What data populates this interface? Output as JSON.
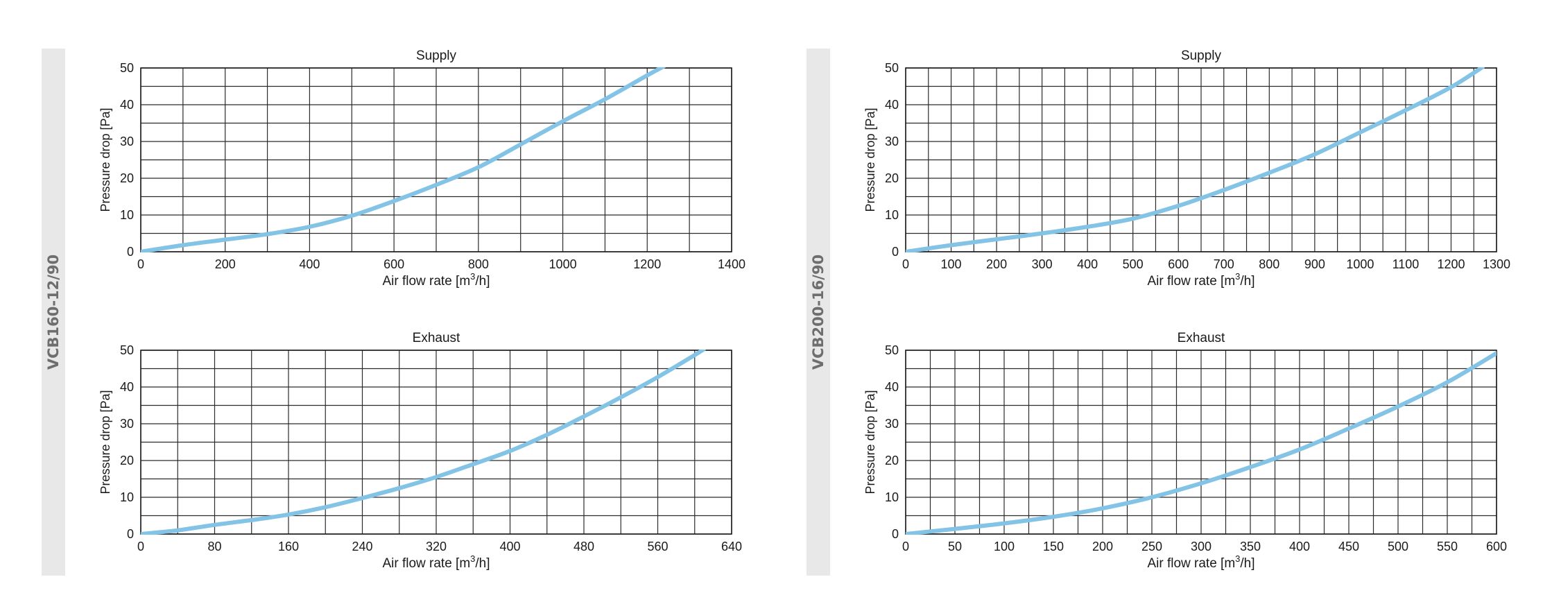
{
  "groups": [
    {
      "model": "VCB160-12/90"
    },
    {
      "model": "VCB200-16/90"
    }
  ],
  "chart_data": [
    {
      "type": "line",
      "group": "VCB160-12/90",
      "title": "Supply",
      "xlabel": "Air flow rate [m³/h]",
      "xlabel_parts": {
        "main": "Air flow rate [m",
        "sup": "3",
        "tail": "/h]"
      },
      "ylabel": "Pressure drop [Pa]",
      "xlim": [
        0,
        1400
      ],
      "ylim": [
        0,
        50
      ],
      "x_ticks": [
        0,
        200,
        400,
        600,
        800,
        1000,
        1200,
        1400
      ],
      "x_tick_labels": [
        "0",
        "200",
        "400",
        "600",
        "800",
        "1000",
        "1200",
        "1400"
      ],
      "x_minor_step": 100,
      "y_ticks": [
        0,
        10,
        20,
        30,
        40,
        50
      ],
      "y_tick_labels": [
        "0",
        "10",
        "20",
        "30",
        "40",
        "50"
      ],
      "y_minor_step": 5,
      "grid": true,
      "line_color": "#82c3e6",
      "x": [
        0,
        100,
        200,
        300,
        400,
        500,
        600,
        700,
        800,
        900,
        1000,
        1100,
        1200,
        1240
      ],
      "y": [
        0,
        1.8,
        3.3,
        4.8,
        6.8,
        9.8,
        13.8,
        18.2,
        23,
        29.2,
        35.5,
        41.5,
        48,
        50.5
      ]
    },
    {
      "type": "line",
      "group": "VCB160-12/90",
      "title": "Exhaust",
      "xlabel": "Air flow rate [m³/h]",
      "xlabel_parts": {
        "main": "Air flow rate [m",
        "sup": "3",
        "tail": "/h]"
      },
      "ylabel": "Pressure drop [Pa]",
      "xlim": [
        0,
        640
      ],
      "ylim": [
        0,
        50
      ],
      "x_ticks": [
        0,
        80,
        160,
        240,
        320,
        400,
        480,
        560,
        640
      ],
      "x_tick_labels": [
        "0",
        "80",
        "160",
        "240",
        "320",
        "400",
        "480",
        "560",
        "640"
      ],
      "x_minor_step": 40,
      "y_ticks": [
        0,
        10,
        20,
        30,
        40,
        50
      ],
      "y_tick_labels": [
        "0",
        "10",
        "20",
        "30",
        "40",
        "50"
      ],
      "y_minor_step": 5,
      "grid": true,
      "line_color": "#82c3e6",
      "x": [
        0,
        40,
        80,
        120,
        160,
        200,
        240,
        280,
        320,
        360,
        400,
        440,
        480,
        520,
        560,
        600,
        610
      ],
      "y": [
        0,
        1,
        2.5,
        3.8,
        5.3,
        7.3,
        9.8,
        12.5,
        15.5,
        19,
        22.6,
        27,
        32,
        37.2,
        42.7,
        48.7,
        50.3
      ]
    },
    {
      "type": "line",
      "group": "VCB200-16/90",
      "title": "Supply",
      "xlabel": "Air flow rate [m³/h]",
      "xlabel_parts": {
        "main": "Air flow rate [m",
        "sup": "3",
        "tail": "/h]"
      },
      "ylabel": "Pressure drop [Pa]",
      "xlim": [
        0,
        1300
      ],
      "ylim": [
        0,
        50
      ],
      "x_ticks": [
        0,
        100,
        200,
        300,
        400,
        500,
        600,
        700,
        800,
        900,
        1000,
        1100,
        1200,
        1300
      ],
      "x_tick_labels": [
        "0",
        "100",
        "200",
        "300",
        "400",
        "500",
        "600",
        "700",
        "800",
        "900",
        "1000",
        "1100",
        "1200",
        "1300"
      ],
      "x_minor_step": 50,
      "y_ticks": [
        0,
        10,
        20,
        30,
        40,
        50
      ],
      "y_tick_labels": [
        "0",
        "10",
        "20",
        "30",
        "40",
        "50"
      ],
      "y_minor_step": 5,
      "grid": true,
      "line_color": "#82c3e6",
      "x": [
        0,
        100,
        200,
        300,
        400,
        500,
        600,
        700,
        800,
        900,
        1000,
        1100,
        1200,
        1270
      ],
      "y": [
        0,
        1.8,
        3.4,
        5,
        6.8,
        9,
        12.5,
        16.8,
        21.5,
        26.5,
        32.5,
        38.5,
        44.8,
        50.3
      ]
    },
    {
      "type": "line",
      "group": "VCB200-16/90",
      "title": "Exhaust",
      "xlabel": "Air flow rate [m³/h]",
      "xlabel_parts": {
        "main": "Air flow rate [m",
        "sup": "3",
        "tail": "/h]"
      },
      "ylabel": "Pressure drop [Pa]",
      "xlim": [
        0,
        600
      ],
      "ylim": [
        0,
        50
      ],
      "x_ticks": [
        0,
        50,
        100,
        150,
        200,
        250,
        300,
        350,
        400,
        450,
        500,
        550,
        600
      ],
      "x_tick_labels": [
        "0",
        "50",
        "100",
        "150",
        "200",
        "250",
        "300",
        "350",
        "400",
        "450",
        "500",
        "550",
        "600"
      ],
      "x_minor_step": 25,
      "y_ticks": [
        0,
        10,
        20,
        30,
        40,
        50
      ],
      "y_tick_labels": [
        "0",
        "10",
        "20",
        "30",
        "40",
        "50"
      ],
      "y_minor_step": 5,
      "grid": true,
      "line_color": "#82c3e6",
      "x": [
        0,
        50,
        100,
        150,
        200,
        250,
        300,
        350,
        400,
        450,
        500,
        550,
        600
      ],
      "y": [
        0,
        1.4,
        2.9,
        4.7,
        7,
        10,
        13.8,
        18.2,
        23,
        28.7,
        34.7,
        41.3,
        49.2
      ]
    }
  ]
}
